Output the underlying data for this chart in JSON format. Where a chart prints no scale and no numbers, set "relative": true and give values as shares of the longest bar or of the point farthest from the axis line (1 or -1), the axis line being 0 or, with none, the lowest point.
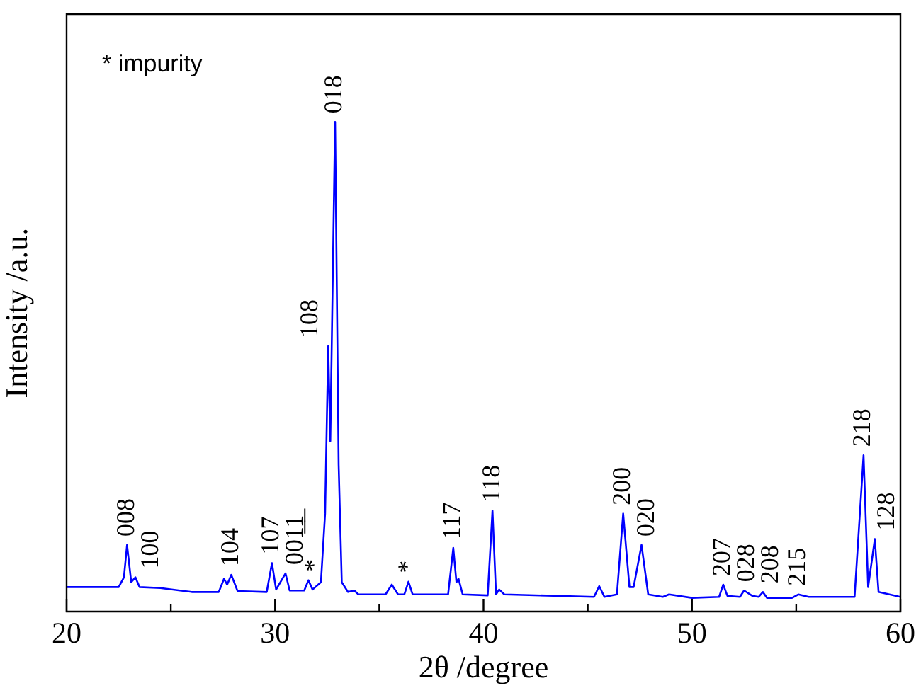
{
  "chart_data": {
    "type": "line",
    "xlabel": "2θ /degree",
    "ylabel": "Intensity /a.u.",
    "relative": true,
    "grid": false,
    "legend": false,
    "marker": "none",
    "line_style": "solid",
    "xlim": [
      20,
      60
    ],
    "xticks": [
      20,
      {
        "value": 25,
        "label": null
      },
      30,
      {
        "value": 35,
        "label": null
      },
      40,
      {
        "value": 45,
        "label": null
      },
      50,
      {
        "value": 55,
        "label": null
      },
      60
    ],
    "x": [
      20,
      22.5,
      22.75,
      22.9,
      23.1,
      23.3,
      23.5,
      24.5,
      26,
      27.3,
      27.55,
      27.7,
      27.9,
      28.2,
      29.6,
      29.85,
      30.05,
      30.5,
      30.7,
      31.4,
      31.6,
      31.8,
      32.2,
      32.4,
      32.55,
      32.65,
      32.88,
      33.05,
      33.2,
      33.5,
      33.8,
      34,
      35.3,
      35.6,
      35.9,
      36.2,
      36.4,
      36.6,
      38.3,
      38.55,
      38.7,
      38.8,
      39,
      40.2,
      40.43,
      40.6,
      40.75,
      41,
      45.3,
      45.55,
      45.8,
      46.4,
      46.7,
      47,
      47.2,
      47.58,
      47.9,
      48.6,
      48.9,
      50,
      51.3,
      51.5,
      51.7,
      52.3,
      52.5,
      52.9,
      53.2,
      53.4,
      53.6,
      54.8,
      55.1,
      55.6,
      57.8,
      58.23,
      58.45,
      58.77,
      58.95,
      60
    ],
    "series": [
      {
        "color": "#0000ff",
        "values": [
          0.05,
          0.05,
          0.07,
          0.136,
          0.06,
          0.07,
          0.05,
          0.048,
          0.04,
          0.04,
          0.067,
          0.055,
          0.075,
          0.042,
          0.04,
          0.099,
          0.045,
          0.078,
          0.043,
          0.043,
          0.064,
          0.045,
          0.06,
          0.2,
          0.542,
          0.348,
          1.0,
          0.3,
          0.06,
          0.04,
          0.043,
          0.035,
          0.035,
          0.055,
          0.035,
          0.035,
          0.061,
          0.035,
          0.035,
          0.13,
          0.06,
          0.067,
          0.035,
          0.033,
          0.206,
          0.035,
          0.045,
          0.035,
          0.03,
          0.052,
          0.03,
          0.035,
          0.2,
          0.05,
          0.05,
          0.136,
          0.035,
          0.03,
          0.035,
          0.028,
          0.03,
          0.055,
          0.032,
          0.03,
          0.043,
          0.032,
          0.03,
          0.04,
          0.028,
          0.028,
          0.035,
          0.03,
          0.03,
          0.319,
          0.05,
          0.148,
          0.04,
          0.03
        ]
      }
    ],
    "annotations": [
      "* impurity",
      {
        "text": "008",
        "x": 22.9,
        "y": 0.136
      },
      {
        "text": "100",
        "x": 23.3,
        "y": 0.07
      },
      {
        "text": "104",
        "x": 27.9,
        "y": 0.075
      },
      {
        "text": "107",
        "x": 29.85,
        "y": 0.099
      },
      {
        "text": "001̲1̲",
        "x": 30.5,
        "y": 0.078
      },
      {
        "text": "*",
        "x": 31.6,
        "y": 0.064
      },
      {
        "text": "108",
        "x": 32.55,
        "y": 0.542
      },
      {
        "text": "018",
        "x": 32.88,
        "y": 1.0
      },
      {
        "text": "*",
        "x": 36.4,
        "y": 0.061
      },
      {
        "text": "117",
        "x": 38.55,
        "y": 0.13
      },
      {
        "text": "118",
        "x": 40.43,
        "y": 0.206
      },
      {
        "text": "200",
        "x": 46.7,
        "y": 0.2
      },
      {
        "text": "020",
        "x": 47.58,
        "y": 0.136
      },
      {
        "text": "207",
        "x": 51.5,
        "y": 0.055
      },
      {
        "text": "028",
        "x": 52.5,
        "y": 0.043
      },
      {
        "text": "208",
        "x": 53.4,
        "y": 0.04
      },
      {
        "text": "215",
        "x": 55.1,
        "y": 0.035
      },
      {
        "text": "218",
        "x": 58.23,
        "y": 0.319
      },
      {
        "text": "128",
        "x": 58.77,
        "y": 0.148
      }
    ]
  }
}
